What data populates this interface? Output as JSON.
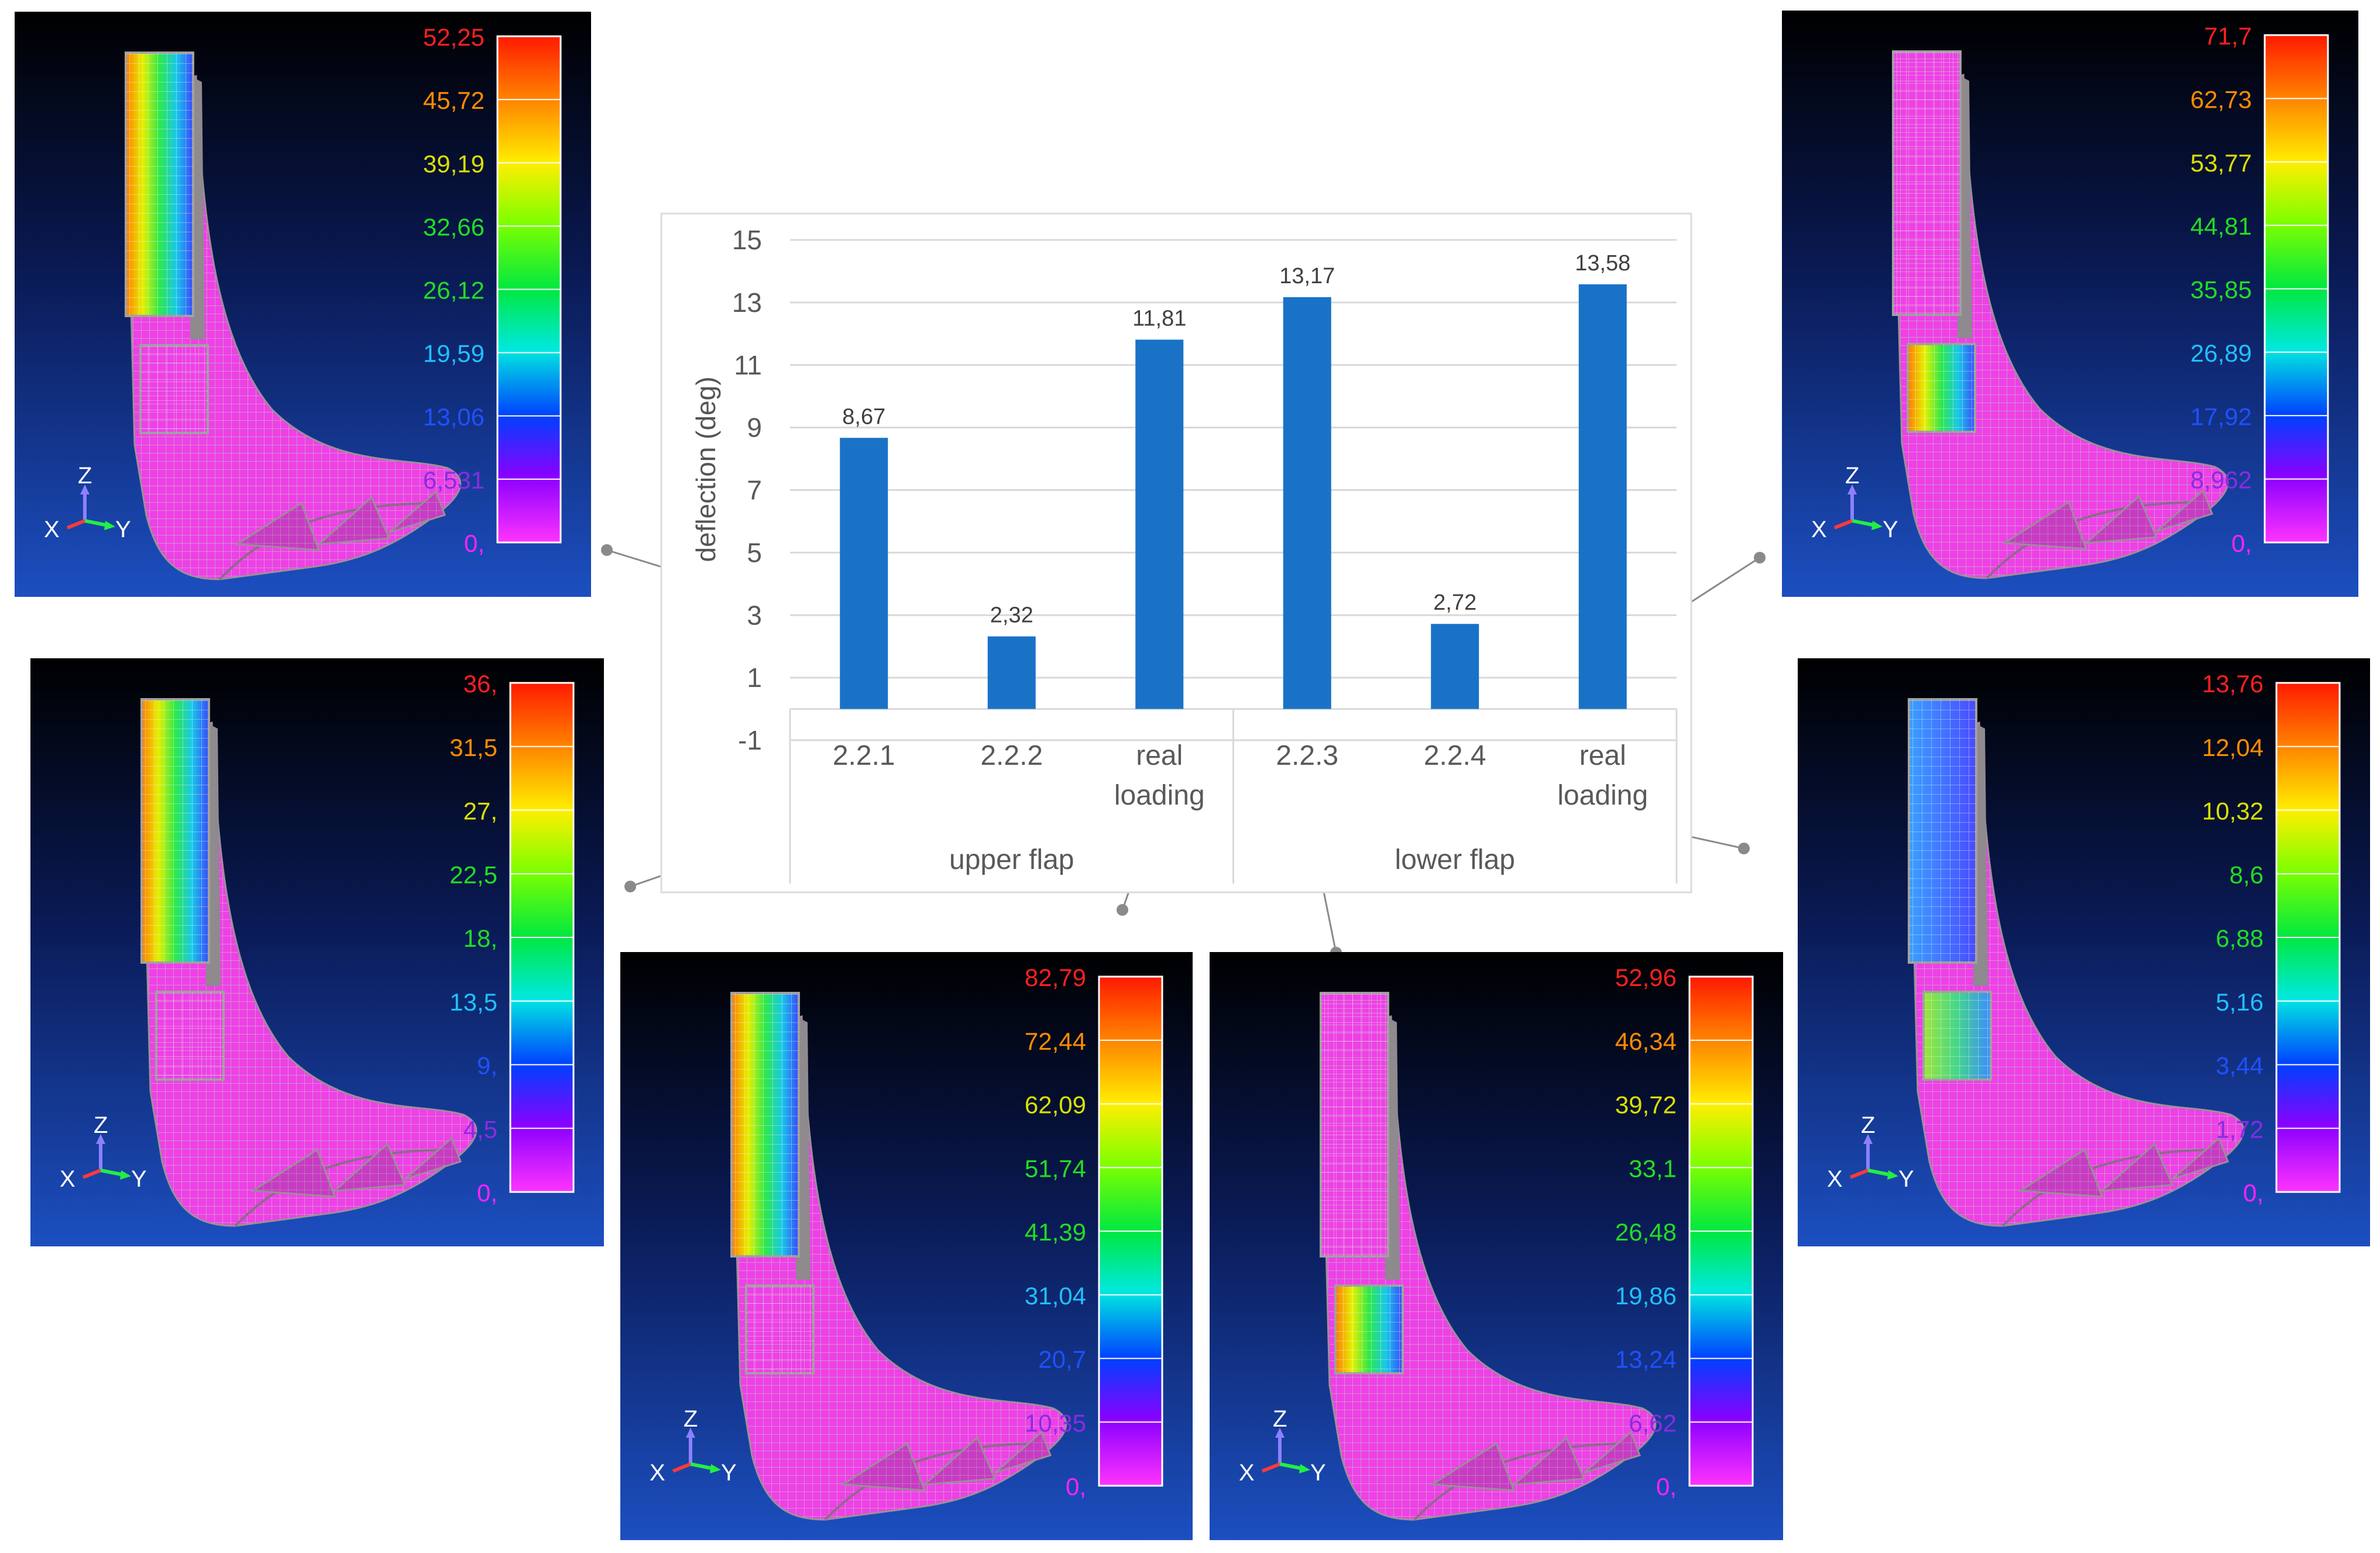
{
  "chart_data": {
    "type": "bar",
    "ylabel": "deflection (deg)",
    "ylim": [
      -1,
      15
    ],
    "yticks": [
      "15",
      "13",
      "11",
      "9",
      "7",
      "5",
      "3",
      "1",
      "-1"
    ],
    "categories": [
      {
        "line1": "2.2.1",
        "line2": ""
      },
      {
        "line1": "2.2.2",
        "line2": ""
      },
      {
        "line1": "real",
        "line2": "loading"
      },
      {
        "line1": "2.2.3",
        "line2": ""
      },
      {
        "line1": "2.2.4",
        "line2": ""
      },
      {
        "line1": "real",
        "line2": "loading"
      }
    ],
    "groups": [
      "upper flap",
      "lower flap"
    ],
    "values": [
      8.67,
      2.32,
      11.81,
      13.17,
      2.72,
      13.58
    ],
    "value_labels": [
      "8,67",
      "2,32",
      "11,81",
      "13,17",
      "2,72",
      "13,58"
    ],
    "bar_color": "#1a72c6",
    "grid": true
  },
  "panels": [
    {
      "id": "p1",
      "labels": [
        "52,25",
        "45,72",
        "39,19",
        "32,66",
        "26,12",
        "19,59",
        "13,06",
        "6,531",
        "0,"
      ],
      "flap": "upper",
      "axes": [
        "Z",
        "X",
        "Y"
      ]
    },
    {
      "id": "p2",
      "labels": [
        "71,7",
        "62,73",
        "53,77",
        "44,81",
        "35,85",
        "26,89",
        "17,92",
        "8,962",
        "0,"
      ],
      "flap": "lower",
      "axes": [
        "Z",
        "X",
        "Y"
      ]
    },
    {
      "id": "p3",
      "labels": [
        "36,",
        "31,5",
        "27,",
        "22,5",
        "18,",
        "13,5",
        "9,",
        "4,5",
        "0,"
      ],
      "flap": "upper",
      "axes": [
        "Z",
        "X",
        "Y"
      ]
    },
    {
      "id": "p4",
      "labels": [
        "13,76",
        "12,04",
        "10,32",
        "8,6",
        "6,88",
        "5,16",
        "3,44",
        "1,72",
        "0,"
      ],
      "flap": "both",
      "axes": [
        "Z",
        "X",
        "Y"
      ]
    },
    {
      "id": "p5",
      "labels": [
        "82,79",
        "72,44",
        "62,09",
        "51,74",
        "41,39",
        "31,04",
        "20,7",
        "10,35",
        "0,"
      ],
      "flap": "upper",
      "axes": [
        "Z",
        "X",
        "Y"
      ]
    },
    {
      "id": "p6",
      "labels": [
        "52,96",
        "46,34",
        "39,72",
        "33,1",
        "26,48",
        "19,86",
        "13,24",
        "6,62",
        "0,"
      ],
      "flap": "lower",
      "axes": [
        "Z",
        "X",
        "Y"
      ]
    }
  ],
  "colors": {
    "legend_label_colors": [
      "#ff2020",
      "#ff8c00",
      "#d8e000",
      "#22dd22",
      "#22dd22",
      "#20c0ff",
      "#2050ff",
      "#8a2be2",
      "#ff22ff"
    ],
    "panel_bg_top": "#000000",
    "panel_bg_bottom": "#1747b8",
    "mesh_pink": "#ee44e8",
    "connector": "#8a8a8a"
  }
}
